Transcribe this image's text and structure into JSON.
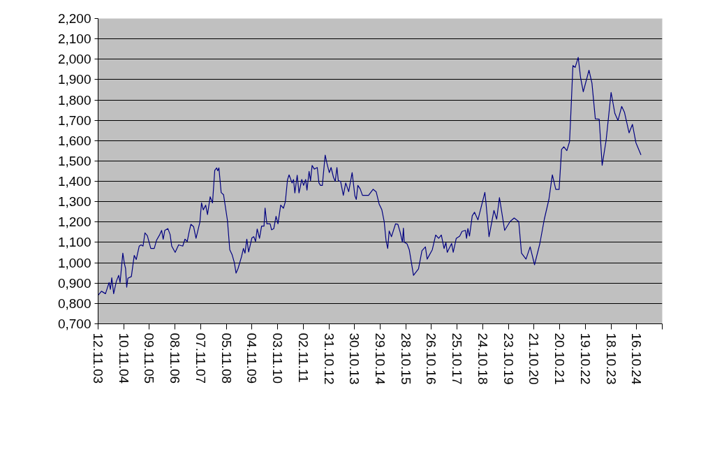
{
  "chart_data": {
    "type": "line",
    "color": "#000080",
    "line_style": "solid",
    "marker": "none",
    "grid": "y",
    "x": [
      "2003-11-12",
      "2003-12-30",
      "2004-02-25",
      "2004-04-16",
      "2004-05-05",
      "2004-05-24",
      "2004-06-20",
      "2004-07-28",
      "2004-08-30",
      "2004-09-19",
      "2004-10-28",
      "2004-11-20",
      "2004-12-06",
      "2004-12-22",
      "2005-01-08",
      "2005-02-26",
      "2005-04-08",
      "2005-05-07",
      "2005-06-18",
      "2005-07-14",
      "2005-08-11",
      "2005-09-07",
      "2005-10-11",
      "2005-11-29",
      "2006-01-17",
      "2006-02-18",
      "2006-04-06",
      "2006-05-02",
      "2006-05-24",
      "2006-06-16",
      "2006-07-29",
      "2006-08-30",
      "2006-09-22",
      "2006-11-10",
      "2006-12-29",
      "2007-02-26",
      "2007-03-29",
      "2007-04-30",
      "2007-05-27",
      "2007-06-21",
      "2007-07-30",
      "2007-09-02",
      "2007-10-27",
      "2007-11-19",
      "2007-12-14",
      "2008-01-17",
      "2008-02-12",
      "2008-03-21",
      "2008-04-23",
      "2008-05-25",
      "2008-06-21",
      "2008-07-06",
      "2008-07-23",
      "2008-08-24",
      "2008-09-27",
      "2008-11-21",
      "2008-12-24",
      "2009-01-25",
      "2009-02-27",
      "2009-03-23",
      "2009-04-21",
      "2009-06-09",
      "2009-07-06",
      "2009-07-28",
      "2009-08-23",
      "2009-09-18",
      "2009-11-03",
      "2009-11-30",
      "2009-12-25",
      "2010-01-17",
      "2010-02-19",
      "2010-03-21",
      "2010-04-24",
      "2010-05-09",
      "2010-06-04",
      "2010-07-20",
      "2010-08-09",
      "2010-09-10",
      "2010-10-12",
      "2010-11-08",
      "2010-12-17",
      "2011-01-25",
      "2011-02-21",
      "2011-03-23",
      "2011-04-15",
      "2011-05-27",
      "2011-06-17",
      "2011-07-06",
      "2011-08-08",
      "2011-09-03",
      "2011-10-12",
      "2011-11-07",
      "2011-12-06",
      "2011-12-25",
      "2012-01-24",
      "2012-02-13",
      "2012-03-07",
      "2012-04-08",
      "2012-05-19",
      "2012-06-12",
      "2012-07-04",
      "2012-07-30",
      "2012-09-08",
      "2012-10-03",
      "2012-11-06",
      "2012-12-01",
      "2013-01-04",
      "2013-01-29",
      "2013-02-22",
      "2013-03-14",
      "2013-04-15",
      "2013-05-24",
      "2013-06-27",
      "2013-08-08",
      "2013-09-26",
      "2013-11-04",
      "2013-11-24",
      "2013-12-16",
      "2014-01-18",
      "2014-02-20",
      "2014-05-17",
      "2014-07-21",
      "2014-09-02",
      "2014-10-14",
      "2014-11-22",
      "2014-12-25",
      "2015-01-20",
      "2015-02-13",
      "2015-03-06",
      "2015-04-07",
      "2015-06-04",
      "2015-07-07",
      "2015-08-08",
      "2015-09-10",
      "2015-09-24",
      "2015-10-06",
      "2015-11-14",
      "2015-12-16",
      "2016-02-14",
      "2016-04-25",
      "2016-06-13",
      "2016-08-01",
      "2016-08-26",
      "2016-11-07",
      "2016-12-25",
      "2017-02-06",
      "2017-03-15",
      "2017-04-23",
      "2017-05-19",
      "2017-06-07",
      "2017-08-08",
      "2017-08-31",
      "2017-10-13",
      "2017-12-01",
      "2018-01-03",
      "2018-02-21",
      "2018-03-08",
      "2018-03-27",
      "2018-04-19",
      "2018-05-28",
      "2018-06-29",
      "2018-08-17",
      "2018-11-23",
      "2018-12-09",
      "2019-01-21",
      "2019-04-01",
      "2019-05-10",
      "2019-06-18",
      "2019-08-31",
      "2019-11-15",
      "2020-01-13",
      "2020-03-18",
      "2020-04-26",
      "2020-06-29",
      "2020-08-27",
      "2020-10-28",
      "2021-01-11",
      "2021-03-16",
      "2021-05-20",
      "2021-07-08",
      "2021-08-26",
      "2021-10-12",
      "2021-11-16",
      "2021-12-18",
      "2022-01-30",
      "2022-03-09",
      "2022-03-24",
      "2022-04-26",
      "2022-05-28",
      "2022-07-10",
      "2022-08-12",
      "2022-09-20",
      "2022-12-10",
      "2023-01-21",
      "2023-03-10",
      "2023-05-04",
      "2023-06-15",
      "2023-08-10",
      "2023-10-20",
      "2023-12-12",
      "2024-01-26",
      "2024-03-18",
      "2024-04-27",
      "2024-07-01",
      "2024-08-18",
      "2024-10-06",
      "2024-12-17"
    ],
    "values": [
      0.84,
      0.86,
      0.848,
      0.903,
      0.869,
      0.926,
      0.848,
      0.909,
      0.938,
      0.903,
      1.047,
      0.995,
      0.972,
      0.88,
      0.924,
      0.932,
      1.036,
      1.016,
      1.082,
      1.088,
      1.082,
      1.147,
      1.133,
      1.07,
      1.07,
      1.11,
      1.139,
      1.159,
      1.116,
      1.159,
      1.168,
      1.139,
      1.082,
      1.051,
      1.088,
      1.082,
      1.116,
      1.105,
      1.151,
      1.189,
      1.177,
      1.12,
      1.2,
      1.294,
      1.26,
      1.283,
      1.237,
      1.324,
      1.294,
      1.454,
      1.466,
      1.452,
      1.466,
      1.345,
      1.334,
      1.208,
      1.064,
      1.041,
      1.001,
      0.949,
      0.972,
      1.03,
      1.07,
      1.047,
      1.116,
      1.053,
      1.122,
      1.128,
      1.105,
      1.166,
      1.12,
      1.18,
      1.18,
      1.269,
      1.191,
      1.191,
      1.162,
      1.168,
      1.228,
      1.191,
      1.283,
      1.268,
      1.3,
      1.407,
      1.432,
      1.392,
      1.409,
      1.343,
      1.43,
      1.343,
      1.409,
      1.38,
      1.409,
      1.357,
      1.449,
      1.403,
      1.478,
      1.46,
      1.468,
      1.392,
      1.38,
      1.38,
      1.529,
      1.489,
      1.443,
      1.468,
      1.42,
      1.4,
      1.468,
      1.403,
      1.4,
      1.331,
      1.392,
      1.349,
      1.443,
      1.329,
      1.311,
      1.38,
      1.363,
      1.331,
      1.331,
      1.361,
      1.349,
      1.289,
      1.26,
      1.202,
      1.11,
      1.07,
      1.156,
      1.128,
      1.191,
      1.189,
      1.151,
      1.101,
      1.17,
      1.101,
      1.093,
      1.064,
      0.938,
      0.97,
      1.059,
      1.078,
      1.018,
      1.064,
      1.136,
      1.12,
      1.136,
      1.07,
      1.099,
      1.051,
      1.095,
      1.051,
      1.12,
      1.131,
      1.154,
      1.159,
      1.12,
      1.168,
      1.131,
      1.231,
      1.248,
      1.211,
      1.346,
      1.294,
      1.128,
      1.257,
      1.214,
      1.32,
      1.159,
      1.202,
      1.22,
      1.202,
      1.047,
      1.018,
      1.078,
      0.99,
      1.093,
      1.214,
      1.311,
      1.432,
      1.36,
      1.36,
      1.557,
      1.57,
      1.551,
      1.595,
      1.705,
      1.969,
      1.96,
      2.009,
      1.911,
      1.84,
      1.946,
      1.883,
      1.707,
      1.705,
      1.479,
      1.601,
      1.837,
      1.734,
      1.699,
      1.768,
      1.739,
      1.638,
      1.68,
      1.59,
      1.53
    ],
    "xlim": [
      "2003-11-12",
      "2025-10-15"
    ],
    "xticks": [
      {
        "value": "2003-11-12",
        "label": "12.11.03"
      },
      {
        "value": "2004-11-10",
        "label": "10.11.04"
      },
      {
        "value": "2005-11-09",
        "label": "09.11.05"
      },
      {
        "value": "2006-11-08",
        "label": "08.11.06"
      },
      {
        "value": "2007-11-07",
        "label": "07.11.07"
      },
      {
        "value": "2008-11-05",
        "label": "05.11.08"
      },
      {
        "value": "2009-11-04",
        "label": "04.11.09"
      },
      {
        "value": "2010-11-03",
        "label": "03.11.10"
      },
      {
        "value": "2011-11-02",
        "label": "02.11.11"
      },
      {
        "value": "2012-10-31",
        "label": "31.10.12"
      },
      {
        "value": "2013-10-30",
        "label": "30.10.13"
      },
      {
        "value": "2014-10-29",
        "label": "29.10.14"
      },
      {
        "value": "2015-10-28",
        "label": "28.10.15"
      },
      {
        "value": "2016-10-26",
        "label": "26.10.16"
      },
      {
        "value": "2017-10-25",
        "label": "25.10.17"
      },
      {
        "value": "2018-10-24",
        "label": "24.10.18"
      },
      {
        "value": "2019-10-23",
        "label": "23.10.19"
      },
      {
        "value": "2020-10-21",
        "label": "21.10.20"
      },
      {
        "value": "2021-10-20",
        "label": "20.10.21"
      },
      {
        "value": "2022-10-19",
        "label": "19.10.22"
      },
      {
        "value": "2023-10-18",
        "label": "18.10.23"
      },
      {
        "value": "2024-10-16",
        "label": "16.10.24"
      },
      {
        "value": "2025-10-15",
        "label": null
      }
    ],
    "ylim": [
      0.7,
      2.2
    ],
    "yticks": [
      {
        "value": 0.7,
        "label": "0,700"
      },
      {
        "value": 0.8,
        "label": "0,800"
      },
      {
        "value": 0.9,
        "label": "0,900"
      },
      {
        "value": 1.0,
        "label": "1,000"
      },
      {
        "value": 1.1,
        "label": "1,100"
      },
      {
        "value": 1.2,
        "label": "1,200"
      },
      {
        "value": 1.3,
        "label": "1,300"
      },
      {
        "value": 1.4,
        "label": "1,400"
      },
      {
        "value": 1.5,
        "label": "1,500"
      },
      {
        "value": 1.6,
        "label": "1,600"
      },
      {
        "value": 1.7,
        "label": "1,700"
      },
      {
        "value": 1.8,
        "label": "1,800"
      },
      {
        "value": 1.9,
        "label": "1,900"
      },
      {
        "value": 2.0,
        "label": "2,000"
      },
      {
        "value": 2.1,
        "label": "2,100"
      },
      {
        "value": 2.2,
        "label": "2,200"
      }
    ]
  }
}
